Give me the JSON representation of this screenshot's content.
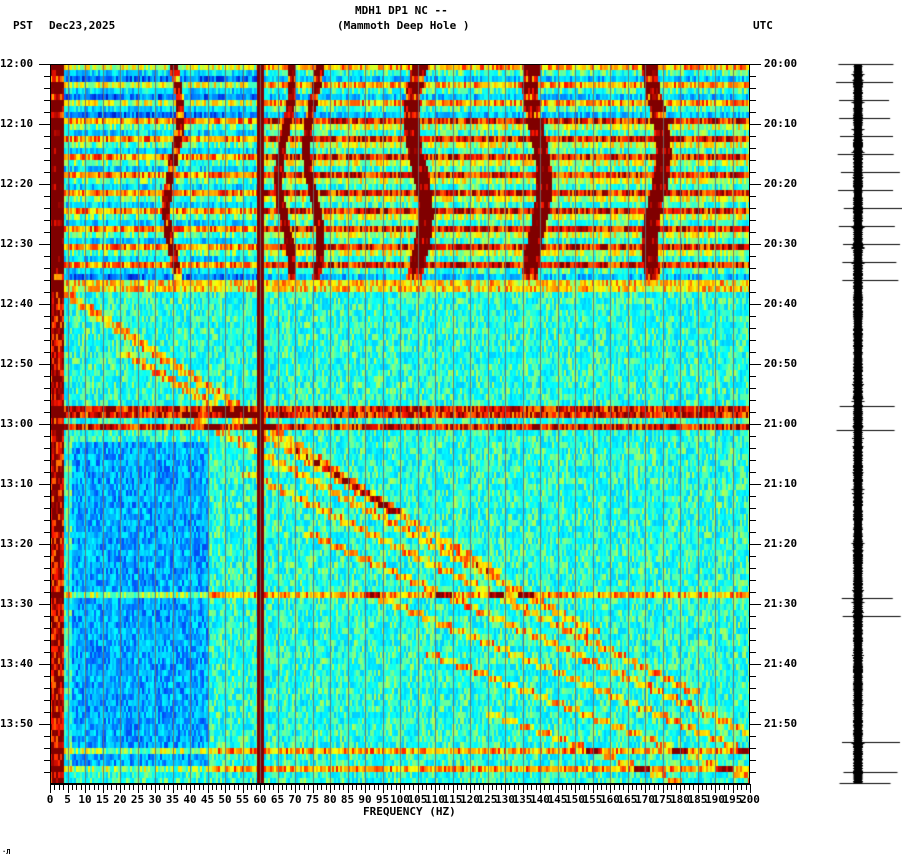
{
  "header": {
    "station": "MDH1 DP1 NC --",
    "site": "(Mammoth Deep Hole )",
    "left_timezone": "PST",
    "date": "Dec23,2025",
    "right_timezone": "UTC"
  },
  "footer_mark": "·Л",
  "chart_data": {
    "type": "heatmap",
    "title": "MDH1 DP1 NC -- (Mammoth Deep Hole )",
    "subtitle": "PST Dec23,2025",
    "xlabel": "FREQUENCY (HZ)",
    "ylabel_left": "PST",
    "ylabel_right": "UTC",
    "xlim": [
      0,
      200
    ],
    "x_ticks": [
      0,
      5,
      10,
      15,
      20,
      25,
      30,
      35,
      40,
      45,
      50,
      55,
      60,
      65,
      70,
      75,
      80,
      85,
      90,
      95,
      100,
      105,
      110,
      115,
      120,
      125,
      130,
      135,
      140,
      145,
      150,
      155,
      160,
      165,
      170,
      175,
      180,
      185,
      190,
      195,
      200
    ],
    "y_ticks_left": [
      "12:00",
      "12:10",
      "12:20",
      "12:30",
      "12:40",
      "12:50",
      "13:00",
      "13:10",
      "13:20",
      "13:30",
      "13:40",
      "13:50"
    ],
    "y_ticks_right": [
      "20:00",
      "20:10",
      "20:20",
      "20:30",
      "20:40",
      "20:50",
      "21:00",
      "21:10",
      "21:20",
      "21:30",
      "21:40",
      "21:50"
    ],
    "time_range_minutes": 120,
    "colormap": "jet",
    "grid": "vertical lines every 5 Hz",
    "features": {
      "persistent_line_hz": 60,
      "low_freq_energy_hz": [
        0,
        4
      ],
      "narrowband_tracks_hz_first_hour": [
        35,
        67,
        75,
        105,
        139,
        173
      ],
      "high_noise_band_minutes": [
        0,
        35
      ],
      "broadband_events_minutes": [
        36,
        57.5,
        60,
        88,
        113
      ]
    },
    "colors": {
      "dark_red": "#800000",
      "red": "#ff0000",
      "orange": "#ff8000",
      "yellow": "#ffff00",
      "green_cyan": "#80ff80",
      "cyan": "#00ffff",
      "blue": "#0080ff"
    }
  },
  "seismogram": {
    "description": "trace column, one line per minute of data",
    "spike_minutes": [
      0,
      3,
      6,
      9,
      12,
      15,
      18,
      21,
      24,
      27,
      30,
      33,
      36,
      57,
      61,
      89,
      92,
      113,
      118,
      120
    ]
  }
}
